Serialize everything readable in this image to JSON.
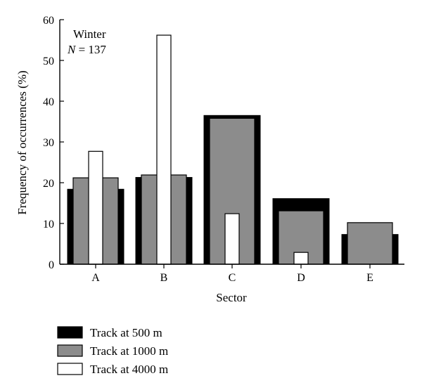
{
  "chart_data": {
    "type": "bar",
    "ylabel": "Frequency of occurrences (%)",
    "xlabel": "Sector",
    "ylim": [
      0,
      60
    ],
    "yticks": [
      "0",
      "10",
      "20",
      "30",
      "40",
      "50",
      "60"
    ],
    "categories": [
      "A",
      "B",
      "C",
      "D",
      "E"
    ],
    "annotation": {
      "line1": "Winter",
      "n_label": "N",
      "n_rest": " = 137"
    },
    "series": [
      {
        "name": "Track at 500 m",
        "color": "#000000",
        "values": [
          18.4,
          21.3,
          36.5,
          16.1,
          7.3
        ]
      },
      {
        "name": "Track at 1000 m",
        "color": "#8c8c8c",
        "values": [
          21.2,
          21.9,
          35.8,
          13.1,
          10.2
        ]
      },
      {
        "name": "Track at 4000 m",
        "color": "#ffffff",
        "values": [
          27.7,
          56.2,
          12.4,
          2.9,
          0
        ]
      }
    ],
    "legend_position": "bottom-left"
  }
}
